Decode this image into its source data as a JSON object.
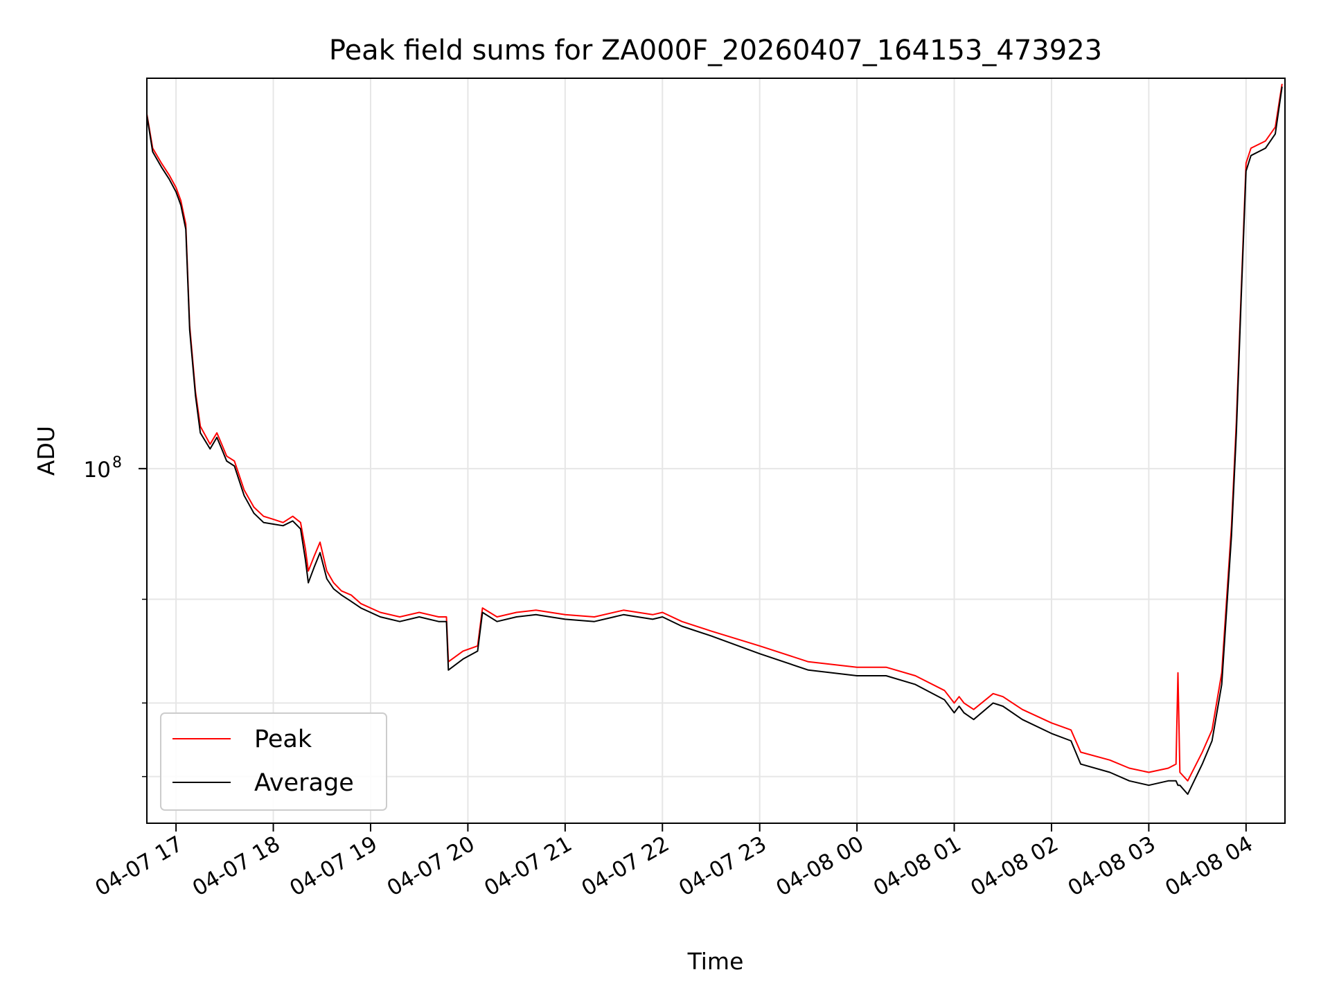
{
  "chart_data": {
    "type": "line",
    "title": "Peak field sums for ZA000F_20260407_164153_473923",
    "xlabel": "Time",
    "ylabel": "ADU",
    "yscale": "log",
    "ylim": [
      25000000,
      460000000
    ],
    "xlim_hours_since_2026-04-07_16:00": [
      0.7,
      12.4
    ],
    "grid": true,
    "legend_position": "lower-left",
    "x_ticks": [
      {
        "hour": 1,
        "label": "04-07 17"
      },
      {
        "hour": 2,
        "label": "04-07 18"
      },
      {
        "hour": 3,
        "label": "04-07 19"
      },
      {
        "hour": 4,
        "label": "04-07 20"
      },
      {
        "hour": 5,
        "label": "04-07 21"
      },
      {
        "hour": 6,
        "label": "04-07 22"
      },
      {
        "hour": 7,
        "label": "04-07 23"
      },
      {
        "hour": 8,
        "label": "04-08 00"
      },
      {
        "hour": 9,
        "label": "04-08 01"
      },
      {
        "hour": 10,
        "label": "04-08 02"
      },
      {
        "hour": 11,
        "label": "04-08 03"
      },
      {
        "hour": 12,
        "label": "04-08 04"
      }
    ],
    "y_major_ticks": [
      {
        "value": 100000000,
        "base": "10",
        "exp": "8"
      }
    ],
    "y_minor_ticks": [
      30000000,
      40000000,
      60000000
    ],
    "x_unit": "hours since 2026-04-07 16:00",
    "series": [
      {
        "name": "Peak",
        "color": "#ff0000",
        "x": [
          0.7,
          0.76,
          0.85,
          0.93,
          1.0,
          1.05,
          1.1,
          1.14,
          1.2,
          1.25,
          1.35,
          1.42,
          1.47,
          1.52,
          1.6,
          1.7,
          1.8,
          1.9,
          2.0,
          2.1,
          2.2,
          2.28,
          2.33,
          2.36,
          2.42,
          2.48,
          2.55,
          2.62,
          2.7,
          2.8,
          2.9,
          3.1,
          3.3,
          3.5,
          3.7,
          3.78,
          3.8,
          3.95,
          4.1,
          4.15,
          4.3,
          4.5,
          4.7,
          5.0,
          5.3,
          5.6,
          5.9,
          6.0,
          6.2,
          6.5,
          7.0,
          7.5,
          8.0,
          8.3,
          8.6,
          8.9,
          9.0,
          9.05,
          9.1,
          9.2,
          9.4,
          9.5,
          9.7,
          10.0,
          10.2,
          10.3,
          10.6,
          10.8,
          11.0,
          11.2,
          11.28,
          11.3,
          11.32,
          11.4,
          11.55,
          11.65,
          11.75,
          11.85,
          11.9,
          11.95,
          12.0,
          12.05,
          12.2,
          12.3,
          12.37
        ],
        "values": [
          400000000,
          350000000,
          330000000,
          315000000,
          300000000,
          285000000,
          260000000,
          175000000,
          135000000,
          118000000,
          110000000,
          115000000,
          110000000,
          105000000,
          103000000,
          92000000,
          86000000,
          83000000,
          82000000,
          81000000,
          83000000,
          81000000,
          73000000,
          67000000,
          71000000,
          75000000,
          67000000,
          64000000,
          62000000,
          61000000,
          59000000,
          57000000,
          56000000,
          57000000,
          56000000,
          56000000,
          47000000,
          49000000,
          50000000,
          58000000,
          56000000,
          57000000,
          57500000,
          56500000,
          56000000,
          57500000,
          56500000,
          57000000,
          55000000,
          53000000,
          50000000,
          47000000,
          46000000,
          46000000,
          44500000,
          42000000,
          40000000,
          41000000,
          40000000,
          39000000,
          41500000,
          41000000,
          39000000,
          37000000,
          36000000,
          33000000,
          32000000,
          31000000,
          30500000,
          31000000,
          31500000,
          45000000,
          30500000,
          29500000,
          33000000,
          36000000,
          45000000,
          80000000,
          120000000,
          200000000,
          330000000,
          350000000,
          360000000,
          380000000,
          450000000
        ]
      },
      {
        "name": "Average",
        "color": "#000000",
        "x": [
          0.7,
          0.76,
          0.85,
          0.93,
          1.0,
          1.05,
          1.1,
          1.14,
          1.2,
          1.25,
          1.35,
          1.42,
          1.47,
          1.52,
          1.6,
          1.7,
          1.8,
          1.9,
          2.0,
          2.1,
          2.2,
          2.28,
          2.33,
          2.36,
          2.42,
          2.48,
          2.55,
          2.62,
          2.7,
          2.8,
          2.9,
          3.1,
          3.3,
          3.5,
          3.7,
          3.78,
          3.8,
          3.95,
          4.1,
          4.15,
          4.3,
          4.5,
          4.7,
          5.0,
          5.3,
          5.6,
          5.9,
          6.0,
          6.2,
          6.5,
          7.0,
          7.5,
          8.0,
          8.3,
          8.6,
          8.9,
          9.0,
          9.05,
          9.1,
          9.2,
          9.4,
          9.5,
          9.7,
          10.0,
          10.2,
          10.3,
          10.6,
          10.8,
          11.0,
          11.2,
          11.28,
          11.3,
          11.32,
          11.4,
          11.55,
          11.65,
          11.75,
          11.85,
          11.9,
          11.95,
          12.0,
          12.05,
          12.2,
          12.3,
          12.37
        ],
        "values": [
          398000000,
          345000000,
          325000000,
          310000000,
          295000000,
          280000000,
          255000000,
          172000000,
          133000000,
          115000000,
          108000000,
          113000000,
          108000000,
          103000000,
          101000000,
          90000000,
          84000000,
          81000000,
          80500000,
          80000000,
          81500000,
          79000000,
          70000000,
          64000000,
          68000000,
          72000000,
          65000000,
          62500000,
          61000000,
          59500000,
          58000000,
          56000000,
          55000000,
          56000000,
          55000000,
          55000000,
          45500000,
          47500000,
          49000000,
          57000000,
          55000000,
          56000000,
          56500000,
          55500000,
          55000000,
          56500000,
          55500000,
          56000000,
          54000000,
          52000000,
          48500000,
          45500000,
          44500000,
          44500000,
          43000000,
          40500000,
          38500000,
          39500000,
          38500000,
          37500000,
          40000000,
          39500000,
          37500000,
          35500000,
          34500000,
          31500000,
          30500000,
          29500000,
          29000000,
          29500000,
          29500000,
          29000000,
          29000000,
          28000000,
          31500000,
          34500000,
          43000000,
          77000000,
          115000000,
          195000000,
          320000000,
          340000000,
          350000000,
          370000000,
          445000000
        ]
      }
    ]
  }
}
